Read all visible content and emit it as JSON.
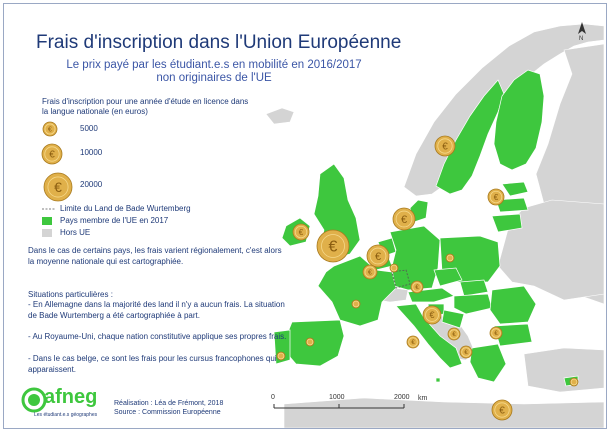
{
  "title": "Frais d'inscription dans l'Union Européenne",
  "subtitle": "Le prix payé par les étudiant.e.s en mobilité en 2016/2017 non originaires de l'UE",
  "legend": {
    "fee_title": "Frais d'inscription pour une année d'étude en licence dans la langue nationale (en euros)",
    "fee_values": [
      "5000",
      "10000",
      "20000"
    ],
    "boundary_label": "Limite du Land de Bade Wurtemberg",
    "member_label": "Pays membre de l'UE en 2017",
    "non_member_label": "Hors UE"
  },
  "colors": {
    "member": "#3ec73e",
    "non_member": "#d4d4d4",
    "sea": "#ffffff",
    "coin": "#e0b04a",
    "title": "#1f3a78"
  },
  "notes": {
    "average": "Dans le cas de certains pays, les frais varient régionalement, c'est alors la moyenne nationale qui est cartographiée.",
    "situations_title": "Situations particulières :",
    "germany": "- En Allemagne dans la majorité des land il n'y a aucun frais. La situation de Bade Wurtemberg a été cartographiée à part.",
    "uk": "- Au Royaume-Uni, chaque nation constitutive applique ses propres frais.",
    "belgium": "- Dans le cas belge, ce sont les frais pour les cursus francophones qui apparaissent."
  },
  "credits": {
    "realisation": "Réalisation : Léa de Frémont, 2018",
    "source": "Source : Commission Européenne"
  },
  "logo": {
    "text": "afneg",
    "sub": "Les étudiant.e.s géographes"
  },
  "scale": {
    "labels": [
      "0",
      "1000",
      "2000"
    ],
    "unit": "km"
  },
  "north_label": "N",
  "euro_symbol": "€"
}
